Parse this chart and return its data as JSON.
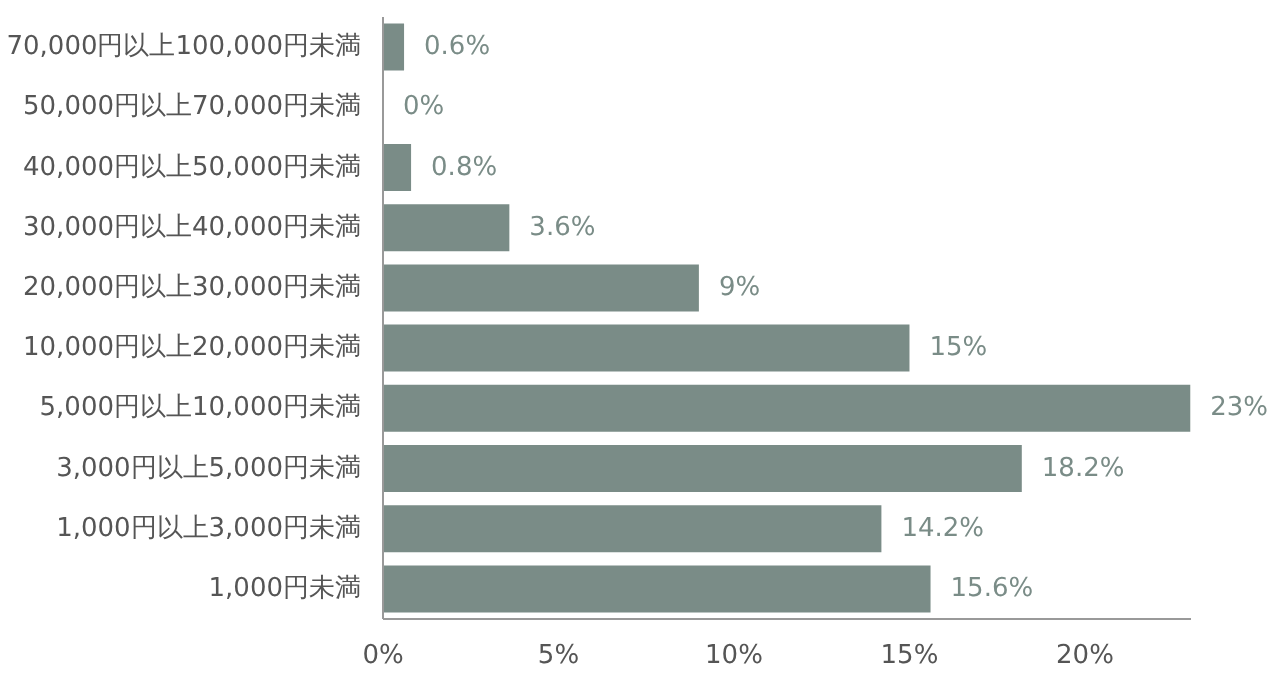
{
  "chart_data": {
    "type": "bar",
    "orientation": "horizontal",
    "categories": [
      "70,000円以上100,000円未満",
      "50,000円以上70,000円未満",
      "40,000円以上50,000円未満",
      "30,000円以上40,000円未満",
      "20,000円以上30,000円未満",
      "10,000円以上20,000円未満",
      "5,000円以上10,000円未満",
      "3,000円以上5,000円未満",
      "1,000円以上3,000円未満",
      "1,000円未満"
    ],
    "values": [
      0.6,
      0,
      0.8,
      3.6,
      9,
      15,
      23,
      18.2,
      14.2,
      15.6
    ],
    "value_labels": [
      "0.6%",
      "0%",
      "0.8%",
      "3.6%",
      "9%",
      "15%",
      "23%",
      "18.2%",
      "14.2%",
      "15.6%"
    ],
    "color": "#7a8c87",
    "xlim": [
      0,
      23
    ],
    "xticks": [
      {
        "value": 0,
        "label": "0%"
      },
      {
        "value": 5,
        "label": "5%"
      },
      {
        "value": 10,
        "label": "10%"
      },
      {
        "value": 15,
        "label": "15%"
      },
      {
        "value": 20,
        "label": "20%"
      }
    ],
    "grid": false
  }
}
